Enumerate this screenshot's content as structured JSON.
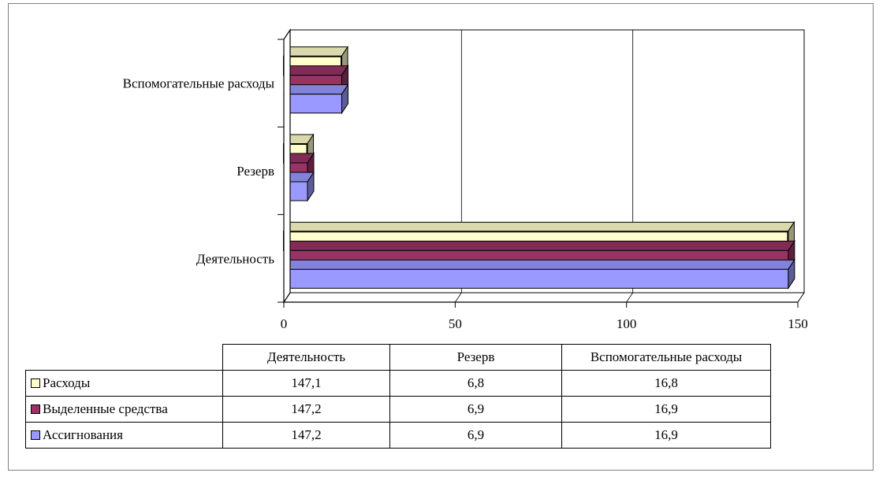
{
  "chart_data": {
    "type": "bar",
    "orientation": "horizontal",
    "style": "3d",
    "categories": [
      "Деятельность",
      "Резерв",
      "Вспомогательные расходы"
    ],
    "series": [
      {
        "name": "Расходы",
        "values": [
          147.1,
          6.8,
          16.8
        ],
        "color": "#ffffcc"
      },
      {
        "name": "Выделенные средства",
        "values": [
          147.2,
          6.9,
          16.9
        ],
        "color": "#993366"
      },
      {
        "name": "Ассигнования",
        "values": [
          147.2,
          6.9,
          16.9
        ],
        "color": "#9999ff"
      }
    ],
    "xlim": [
      0,
      150
    ],
    "x_ticks": [
      0,
      50,
      100,
      150
    ],
    "x_tick_labels": [
      "0",
      "50",
      "100",
      "150"
    ],
    "grid": "vertical",
    "legend": "data-table"
  },
  "table": {
    "header": [
      "Деятельность",
      "Резерв",
      "Вспомогательные расходы"
    ],
    "rows": [
      {
        "label": "Расходы",
        "color": "#ffffcc",
        "values": [
          "147,1",
          "6,8",
          "16,8"
        ]
      },
      {
        "label": "Выделенные средства",
        "color": "#993366",
        "values": [
          "147,2",
          "6,9",
          "16,9"
        ]
      },
      {
        "label": "Ассигнования",
        "color": "#9999ff",
        "values": [
          "147,2",
          "6,9",
          "16,9"
        ]
      }
    ]
  }
}
